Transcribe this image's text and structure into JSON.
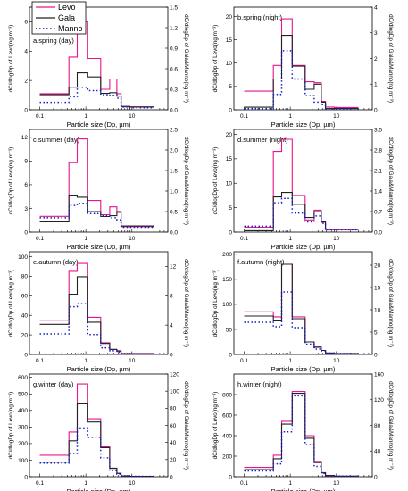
{
  "colors": {
    "levo": "#e8148c",
    "gala": "#222222",
    "manno": "#1020c8",
    "axis": "#000000"
  },
  "legend": [
    "Levo",
    "Gala",
    "Manno"
  ],
  "common": {
    "xlabel": "Particle size (Dp, µm)",
    "ylabel_left": "dC/dlogDp of Levo(ng m⁻³)",
    "ylabel_right": "dC/dlogDp of Gala&Manno(ng m⁻³)",
    "x_ticks": [
      "0.1",
      "1",
      "10"
    ],
    "x_scale": "log",
    "bin_edges_um": [
      0.1,
      0.43,
      0.65,
      1.1,
      2.1,
      3.3,
      4.7,
      5.8,
      9.0,
      30.0
    ]
  },
  "chart_data": [
    {
      "type": "line",
      "step": "bins",
      "title": "a.spring (day)",
      "ylim": [
        0,
        7
      ],
      "yticks": [
        0,
        2,
        4,
        6
      ],
      "y2lim": [
        0,
        1.5
      ],
      "y2ticks": [
        0.0,
        0.3,
        0.6,
        0.9,
        1.2,
        1.5
      ],
      "series": [
        {
          "name": "Levo",
          "axis": "left",
          "values": [
            1.1,
            3.6,
            6.0,
            3.5,
            1.4,
            2.1,
            1.1,
            0.2,
            0.2
          ]
        },
        {
          "name": "Gala",
          "axis": "right",
          "values": [
            0.22,
            0.33,
            0.54,
            0.48,
            0.24,
            0.25,
            0.2,
            0.05,
            0.04
          ]
        },
        {
          "name": "Manno",
          "axis": "right",
          "values": [
            0.11,
            0.19,
            0.33,
            0.28,
            0.22,
            0.21,
            0.17,
            0.04,
            0.03
          ]
        }
      ]
    },
    {
      "type": "line",
      "step": "bins",
      "title": "b.spring (night)",
      "ylim": [
        0,
        22
      ],
      "yticks": [
        0,
        5,
        10,
        15,
        20
      ],
      "y2lim": [
        0,
        4
      ],
      "y2ticks": [
        0,
        1,
        2,
        3,
        4
      ],
      "series": [
        {
          "name": "Levo",
          "axis": "left",
          "values": [
            4.0,
            9.5,
            19.5,
            9.5,
            6.0,
            5.8,
            1.8,
            0.6,
            0.5
          ]
        },
        {
          "name": "Gala",
          "axis": "right",
          "values": [
            0.1,
            1.2,
            2.9,
            1.7,
            0.8,
            1.0,
            0.3,
            0.05,
            0.05
          ]
        },
        {
          "name": "Manno",
          "axis": "right",
          "values": [
            0.05,
            0.6,
            2.3,
            1.2,
            0.55,
            0.3,
            0.2,
            0.05,
            0.05
          ]
        }
      ]
    },
    {
      "type": "line",
      "step": "bins",
      "title": "c.summer (day)",
      "ylim": [
        0,
        13
      ],
      "yticks": [
        0,
        3,
        6,
        9,
        12
      ],
      "y2lim": [
        0,
        2.5
      ],
      "y2ticks": [
        0.0,
        0.5,
        1.0,
        1.5,
        2.0,
        2.5
      ],
      "series": [
        {
          "name": "Levo",
          "axis": "left",
          "values": [
            2.0,
            8.8,
            11.8,
            4.0,
            2.2,
            3.2,
            2.5,
            0.7,
            0.7
          ]
        },
        {
          "name": "Gala",
          "axis": "right",
          "values": [
            0.25,
            0.9,
            0.85,
            0.5,
            0.38,
            0.4,
            0.5,
            0.15,
            0.15
          ]
        },
        {
          "name": "Manno",
          "axis": "right",
          "values": [
            0.35,
            0.65,
            0.7,
            0.45,
            0.4,
            0.35,
            0.3,
            0.12,
            0.12
          ]
        }
      ]
    },
    {
      "type": "line",
      "step": "bins",
      "title": "d.summer (night)",
      "ylim": [
        0,
        21
      ],
      "yticks": [
        0,
        5,
        10,
        15,
        20
      ],
      "y2lim": [
        0,
        3.5
      ],
      "y2ticks": [
        0.0,
        0.7,
        1.4,
        2.1,
        2.8,
        3.5
      ],
      "series": [
        {
          "name": "Levo",
          "axis": "left",
          "values": [
            1.0,
            16.5,
            19.0,
            7.5,
            2.5,
            4.5,
            2.0,
            0.5,
            0.5
          ]
        },
        {
          "name": "Gala",
          "axis": "right",
          "values": [
            0.05,
            1.2,
            1.35,
            0.95,
            0.5,
            0.7,
            0.35,
            0.1,
            0.1
          ]
        },
        {
          "name": "Manno",
          "axis": "right",
          "values": [
            0.2,
            1.0,
            1.15,
            0.65,
            0.35,
            0.55,
            0.3,
            0.08,
            0.08
          ]
        }
      ]
    },
    {
      "type": "line",
      "step": "bins",
      "title": "e.autumn (day)",
      "ylim": [
        0,
        105
      ],
      "yticks": [
        0,
        20,
        40,
        60,
        80,
        100
      ],
      "y2lim": [
        0,
        14
      ],
      "y2ticks": [
        0,
        4,
        8,
        12
      ],
      "series": [
        {
          "name": "Levo",
          "axis": "left",
          "values": [
            35,
            85,
            93,
            38,
            12,
            5,
            3,
            1,
            1
          ]
        },
        {
          "name": "Gala",
          "axis": "right",
          "values": [
            4.1,
            8.2,
            10.6,
            4.4,
            1.5,
            0.7,
            0.5,
            0.1,
            0.1
          ]
        },
        {
          "name": "Manno",
          "axis": "right",
          "values": [
            2.8,
            6.5,
            6.9,
            2.7,
            0.9,
            0.5,
            0.3,
            0.1,
            0.1
          ]
        }
      ]
    },
    {
      "type": "line",
      "step": "bins",
      "title": "f.autumn (night)",
      "ylim": [
        0,
        205
      ],
      "yticks": [
        0,
        50,
        100,
        150,
        200
      ],
      "y2lim": [
        0,
        23
      ],
      "y2ticks": [
        0,
        5,
        10,
        15,
        20
      ],
      "series": [
        {
          "name": "Levo",
          "axis": "left",
          "values": [
            85,
            75,
            180,
            75,
            25,
            15,
            8,
            3,
            2
          ]
        },
        {
          "name": "Gala",
          "axis": "right",
          "values": [
            8.6,
            7.5,
            20.2,
            8.0,
            2.8,
            1.6,
            0.9,
            0.3,
            0.2
          ]
        },
        {
          "name": "Manno",
          "axis": "right",
          "values": [
            7.2,
            6.2,
            14.0,
            6.0,
            2.3,
            1.2,
            0.8,
            0.3,
            0.2
          ]
        }
      ]
    },
    {
      "type": "line",
      "step": "bins",
      "title": "g.winter (day)",
      "ylim": [
        0,
        620
      ],
      "yticks": [
        0,
        100,
        200,
        300,
        400,
        500,
        600
      ],
      "y2lim": [
        0,
        120
      ],
      "y2ticks": [
        0,
        20,
        40,
        60,
        80,
        100,
        120
      ],
      "series": [
        {
          "name": "Levo",
          "axis": "left",
          "values": [
            130,
            270,
            560,
            350,
            180,
            50,
            20,
            5,
            2
          ]
        },
        {
          "name": "Gala",
          "axis": "right",
          "values": [
            17,
            42,
            86,
            64,
            34,
            10,
            4,
            1,
            0.5
          ]
        },
        {
          "name": "Manno",
          "axis": "right",
          "values": [
            16,
            27,
            57,
            46,
            22,
            7,
            3,
            1,
            0.5
          ]
        }
      ]
    },
    {
      "type": "line",
      "step": "bins",
      "title": "h.winter (night)",
      "ylim": [
        0,
        1000
      ],
      "yticks": [
        0,
        200,
        400,
        600,
        800
      ],
      "y2lim": [
        0,
        160
      ],
      "y2ticks": [
        0,
        40,
        80,
        120,
        160
      ],
      "series": [
        {
          "name": "Levo",
          "axis": "left",
          "values": [
            90,
            210,
            540,
            830,
            400,
            150,
            40,
            10,
            5
          ]
        },
        {
          "name": "Gala",
          "axis": "right",
          "values": [
            11,
            28,
            82,
            130,
            60,
            22,
            6,
            2,
            1
          ]
        },
        {
          "name": "Manno",
          "axis": "right",
          "values": [
            9,
            20,
            70,
            126,
            50,
            16,
            5,
            1.5,
            1
          ]
        }
      ]
    }
  ]
}
